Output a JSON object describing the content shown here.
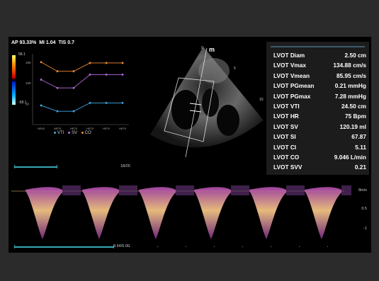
{
  "header": {
    "ap": "AP 93.33%",
    "mi": "MI 1.04",
    "tis": "TIS 0.7"
  },
  "color_scale": {
    "top": "58.1",
    "bottom": "-58.1"
  },
  "trend_chart": {
    "y_ticks": [
      "150",
      "100",
      "50"
    ],
    "x_ticks": [
      "HR42",
      "HR70",
      "HR70",
      "HR70",
      "HR70",
      "HR70"
    ],
    "legend": [
      {
        "label": "VTI",
        "color": "#3fa8e6"
      },
      {
        "label": "SV",
        "color": "#b86be0"
      },
      {
        "label": "CO",
        "color": "#f08a30"
      }
    ],
    "series": {
      "co": [
        150,
        128,
        128,
        148,
        148,
        148
      ],
      "sv": [
        108,
        88,
        88,
        120,
        120,
        120
      ],
      "vti": [
        46,
        32,
        32,
        52,
        52,
        52
      ]
    }
  },
  "echo": {
    "label": "m",
    "depth_marks": [
      "0",
      "5",
      "10"
    ]
  },
  "measurements": [
    {
      "label": "LVOT Diam",
      "value": "2.50 cm"
    },
    {
      "label": "LVOT Vmax",
      "value": "134.88 cm/s"
    },
    {
      "label": "LVOT Vmean",
      "value": "85.95 cm/s"
    },
    {
      "label": "LVOT PGmean",
      "value": "0.21 mmHg"
    },
    {
      "label": "LVOT PGmax",
      "value": "7.28 mmHg"
    },
    {
      "label": "LVOT VTI",
      "value": "24.50 cm"
    },
    {
      "label": "LVOT HR",
      "value": "75 Bpm"
    },
    {
      "label": "LVOT SV",
      "value": "120.19 ml"
    },
    {
      "label": "LVOT SI",
      "value": "67.87"
    },
    {
      "label": "LVOT CI",
      "value": "5.11"
    },
    {
      "label": "LVOT CO",
      "value": "9.046 L/min"
    },
    {
      "label": "LVOT SVV",
      "value": "0.21"
    }
  ],
  "progress_top": {
    "text": "18/25",
    "fraction": 0.72
  },
  "progress_bottom": {
    "text": "3.54/5.00",
    "fraction": 0.708
  },
  "doppler": {
    "unit": "8m/s",
    "axis_labels": [
      "0.5",
      "-1"
    ]
  }
}
